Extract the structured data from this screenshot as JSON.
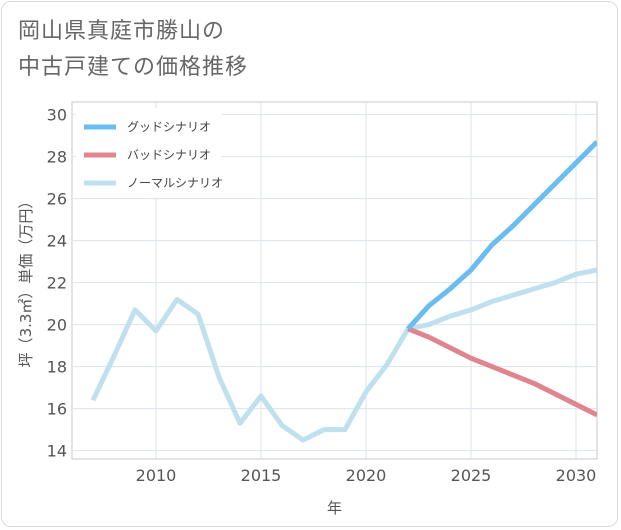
{
  "title_lines": [
    "岡山県真庭市勝山の",
    "中古戸建ての価格推移"
  ],
  "chart_data": {
    "type": "line",
    "xlabel": "年",
    "ylabel": "坪（3.3㎡）単価（万円）",
    "xlim": [
      2006,
      2031
    ],
    "ylim": [
      13.6,
      30.6
    ],
    "xticks": [
      2010,
      2015,
      2020,
      2025,
      2030
    ],
    "yticks": [
      14,
      16,
      18,
      20,
      22,
      24,
      26,
      28,
      30
    ],
    "grid": true,
    "legend_position": "top-left",
    "series": [
      {
        "name": "グッドシナリオ",
        "color": "#6bbcf0",
        "x": [
          2022,
          2023,
          2024,
          2025,
          2026,
          2027,
          2028,
          2029,
          2030,
          2031
        ],
        "y": [
          19.8,
          20.9,
          21.7,
          22.6,
          23.8,
          24.7,
          25.7,
          26.7,
          27.7,
          28.7
        ]
      },
      {
        "name": "バッドシナリオ",
        "color": "#e0848e",
        "x": [
          2022,
          2023,
          2024,
          2025,
          2026,
          2027,
          2028,
          2029,
          2030,
          2031
        ],
        "y": [
          19.8,
          19.4,
          18.9,
          18.4,
          18.0,
          17.6,
          17.2,
          16.7,
          16.2,
          15.7
        ]
      },
      {
        "name": "ノーマルシナリオ",
        "color": "#bfe0ee",
        "x": [
          2007,
          2008,
          2009,
          2010,
          2011,
          2012,
          2013,
          2014,
          2015,
          2016,
          2017,
          2018,
          2019,
          2020,
          2021,
          2022,
          2023,
          2024,
          2025,
          2026,
          2027,
          2028,
          2029,
          2030,
          2031
        ],
        "y": [
          16.4,
          18.5,
          20.7,
          19.7,
          21.2,
          20.5,
          17.5,
          15.3,
          16.6,
          15.2,
          14.5,
          15.0,
          15.0,
          16.8,
          18.1,
          19.8,
          20.0,
          20.4,
          20.7,
          21.1,
          21.4,
          21.7,
          22.0,
          22.4,
          22.6
        ]
      }
    ]
  }
}
